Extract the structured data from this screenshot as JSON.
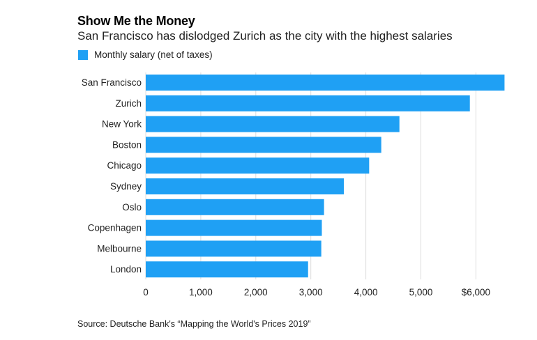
{
  "header": {
    "title": "Show Me the Money",
    "subtitle": "San Francisco has dislodged Zurich as the city with the highest salaries"
  },
  "footer": {
    "source": "Source: Deutsche Bank's “Mapping the World's Prices 2019”"
  },
  "colors": {
    "bar": "#1fa0f4",
    "grid": "#dcdcdc",
    "text": "#222222"
  },
  "chart_data": {
    "type": "bar",
    "orientation": "horizontal",
    "categories": [
      "San Francisco",
      "Zurich",
      "New York",
      "Boston",
      "Chicago",
      "Sydney",
      "Oslo",
      "Copenhagen",
      "Melbourne",
      "London"
    ],
    "series": [
      {
        "name": "Monthly salary (net of taxes)",
        "values": [
          6520,
          5890,
          4610,
          4280,
          4060,
          3600,
          3240,
          3200,
          3190,
          2950
        ]
      }
    ],
    "x_ticks": [
      {
        "value": 0,
        "label": "0"
      },
      {
        "value": 1000,
        "label": "1,000"
      },
      {
        "value": 2000,
        "label": "2,000"
      },
      {
        "value": 3000,
        "label": "3,000"
      },
      {
        "value": 4000,
        "label": "4,000"
      },
      {
        "value": 5000,
        "label": "5,000"
      },
      {
        "value": 6000,
        "label": "$6,000"
      }
    ],
    "xlim": [
      0,
      6500
    ],
    "grid": "vertical",
    "legend": "top-left"
  }
}
